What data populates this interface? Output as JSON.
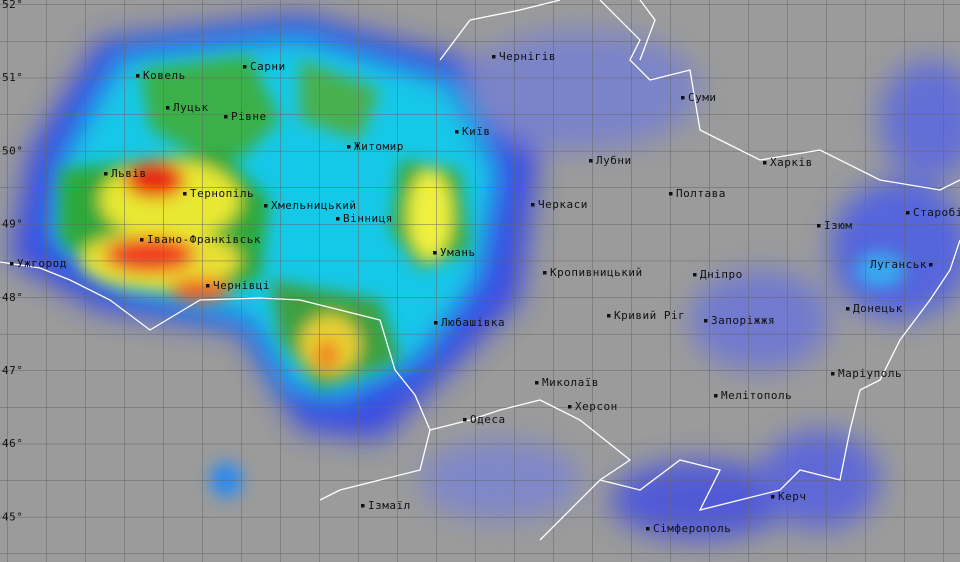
{
  "lat_labels": [
    "52°",
    "51°",
    "50°",
    "49°",
    "48°",
    "47°",
    "46°",
    "45°"
  ],
  "cities": [
    "Ковель",
    "Сарни",
    "Луцьк",
    "Рівне",
    "Житомир",
    "Київ",
    "Чернігів",
    "Суми",
    "Львів",
    "Тернопіль",
    "Хмельницький",
    "Вінниця",
    "Харків",
    "Лубни",
    "Полтава",
    "Черкаси",
    "Ізюм",
    "Старобільськ",
    "Ужгород",
    "Івано-Франківськ",
    "Умань",
    "Луганськ",
    "Чернівці",
    "Кропивницький",
    "Дніпро",
    "Донецьк",
    "Любашівка",
    "Кривий Ріг",
    "Запоріжжя",
    "Маріуполь",
    "Миколаїв",
    "Мелітополь",
    "Херсон",
    "Одеса",
    "Керч",
    "Ізмаїл",
    "Сімферополь"
  ]
}
